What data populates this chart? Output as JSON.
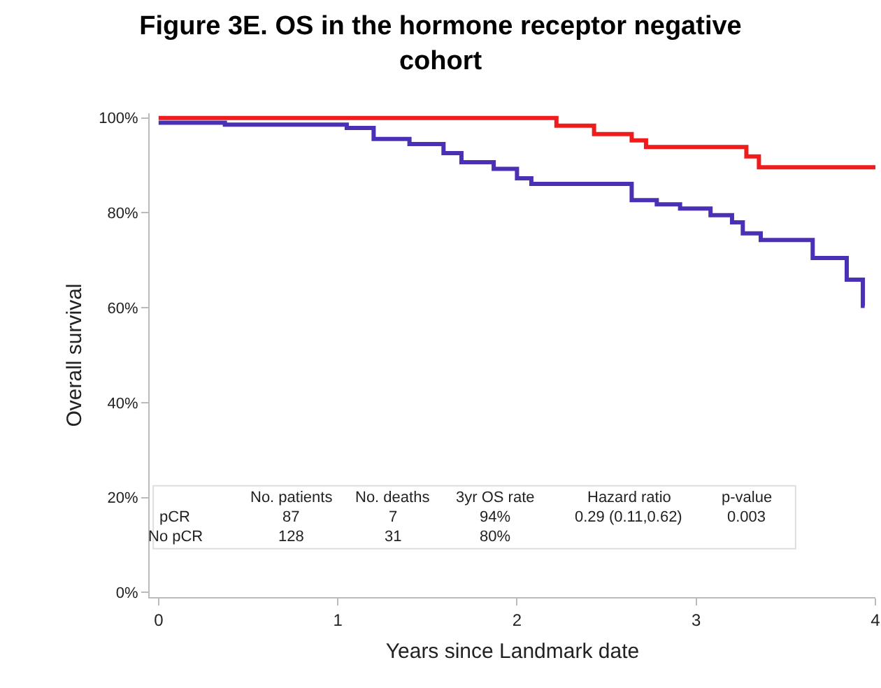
{
  "chart_data": {
    "type": "step",
    "title": "Figure 3E. OS in the hormone receptor negative cohort",
    "xlabel": "Years since Landmark date",
    "ylabel": "Overall survival",
    "xlim": [
      -0.05,
      4.0
    ],
    "xticks": [
      0,
      1,
      2,
      3,
      4
    ],
    "ylim": [
      -1,
      101
    ],
    "yticks": [
      {
        "value": 0,
        "label": "0%"
      },
      {
        "value": 20,
        "label": "20%"
      },
      {
        "value": 40,
        "label": "40%"
      },
      {
        "value": 60,
        "label": "60%"
      },
      {
        "value": 80,
        "label": "80%"
      },
      {
        "value": 100,
        "label": "100%"
      }
    ],
    "grid": false,
    "marker": "none",
    "line_style": "solid",
    "series": [
      {
        "color": "#ee1c1c",
        "x": [
          0,
          2.22,
          2.43,
          2.64,
          2.72,
          3.28,
          3.35,
          4.0
        ],
        "values": [
          100,
          98.4,
          96.6,
          95.3,
          93.9,
          91.9,
          89.6,
          89.6
        ]
      },
      {
        "color": "#4b2fb5",
        "x": [
          0,
          0.37,
          1.05,
          1.2,
          1.4,
          1.59,
          1.69,
          1.87,
          2.0,
          2.08,
          2.64,
          2.78,
          2.91,
          3.08,
          3.2,
          3.26,
          3.36,
          3.65,
          3.84,
          3.93,
          3.94
        ],
        "values": [
          99,
          98.6,
          97.9,
          95.6,
          94.5,
          92.6,
          90.7,
          89.3,
          87.3,
          86.1,
          82.7,
          81.8,
          80.9,
          79.5,
          78,
          75.7,
          74.3,
          70.5,
          65.9,
          60.4,
          60.4
        ]
      }
    ],
    "annotations": [
      "No. patients",
      "No. deaths",
      "3yr OS rate",
      "Hazard ratio",
      "p-value",
      "pCR",
      "87",
      "7",
      "94%",
      "0.29 (0.11,0.62)",
      "0.003",
      "No pCR",
      "128",
      "31",
      "80%"
    ]
  }
}
